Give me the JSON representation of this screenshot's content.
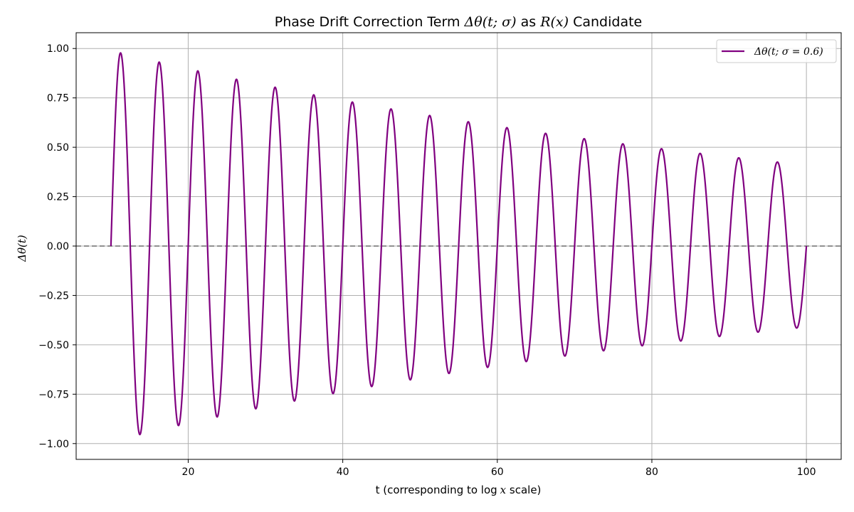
{
  "chart_data": {
    "type": "line",
    "title": {
      "prefix": "Phase Drift Correction Term ",
      "math1": "Δθ(t; σ)",
      "middle": " as ",
      "math2": "R(x)",
      "suffix": " Candidate"
    },
    "xlabel": {
      "prefix": "t (corresponding to log",
      "math": "x",
      "suffix": " scale)"
    },
    "ylabel": "Δθ(t)",
    "xlim": [
      5.5,
      104.5
    ],
    "ylim": [
      -1.08,
      1.08
    ],
    "xticks": [
      20,
      40,
      60,
      80,
      100
    ],
    "xtick_labels": [
      "20",
      "40",
      "60",
      "80",
      "100"
    ],
    "yticks": [
      -1.0,
      -0.75,
      -0.5,
      -0.25,
      0.0,
      0.25,
      0.5,
      0.75,
      1.0
    ],
    "ytick_labels": [
      "−1.00",
      "−0.75",
      "−0.50",
      "−0.25",
      "0.00",
      "0.25",
      "0.50",
      "0.75",
      "1.00"
    ],
    "grid": true,
    "legend_position": "top-right",
    "reference_line": {
      "y": 0,
      "style": "dashed",
      "color": "#808080"
    },
    "series": [
      {
        "name": "Δθ(t; σ = 0.6)",
        "color": "#800080",
        "function": "amplitude * sin(2π (t - 10) / 5), amplitude decaying 1.0 → 0.42",
        "t_start": 10,
        "t_end": 100,
        "period": 5,
        "points": [
          [
            10,
            0.0
          ],
          [
            11.25,
            0.99
          ],
          [
            13.75,
            -0.96
          ],
          [
            16.25,
            0.94
          ],
          [
            18.75,
            -0.92
          ],
          [
            21.25,
            0.89
          ],
          [
            23.75,
            -0.87
          ],
          [
            26.25,
            0.85
          ],
          [
            28.75,
            -0.83
          ],
          [
            31.25,
            0.81
          ],
          [
            33.75,
            -0.79
          ],
          [
            36.25,
            0.77
          ],
          [
            38.75,
            -0.75
          ],
          [
            41.25,
            0.73
          ],
          [
            43.75,
            -0.71
          ],
          [
            46.25,
            0.7
          ],
          [
            48.75,
            -0.68
          ],
          [
            51.25,
            0.66
          ],
          [
            53.75,
            -0.65
          ],
          [
            56.25,
            0.63
          ],
          [
            58.75,
            -0.61
          ],
          [
            61.25,
            0.6
          ],
          [
            63.75,
            -0.58
          ],
          [
            66.25,
            0.57
          ],
          [
            68.75,
            -0.56
          ],
          [
            71.25,
            0.54
          ],
          [
            73.75,
            -0.53
          ],
          [
            76.25,
            0.52
          ],
          [
            78.75,
            -0.5
          ],
          [
            81.25,
            0.49
          ],
          [
            83.75,
            -0.48
          ],
          [
            86.25,
            0.47
          ],
          [
            88.75,
            -0.45
          ],
          [
            91.25,
            0.44
          ],
          [
            93.75,
            -0.43
          ],
          [
            96.25,
            0.42
          ],
          [
            98.75,
            -0.41
          ],
          [
            100,
            0.0
          ]
        ]
      }
    ]
  }
}
